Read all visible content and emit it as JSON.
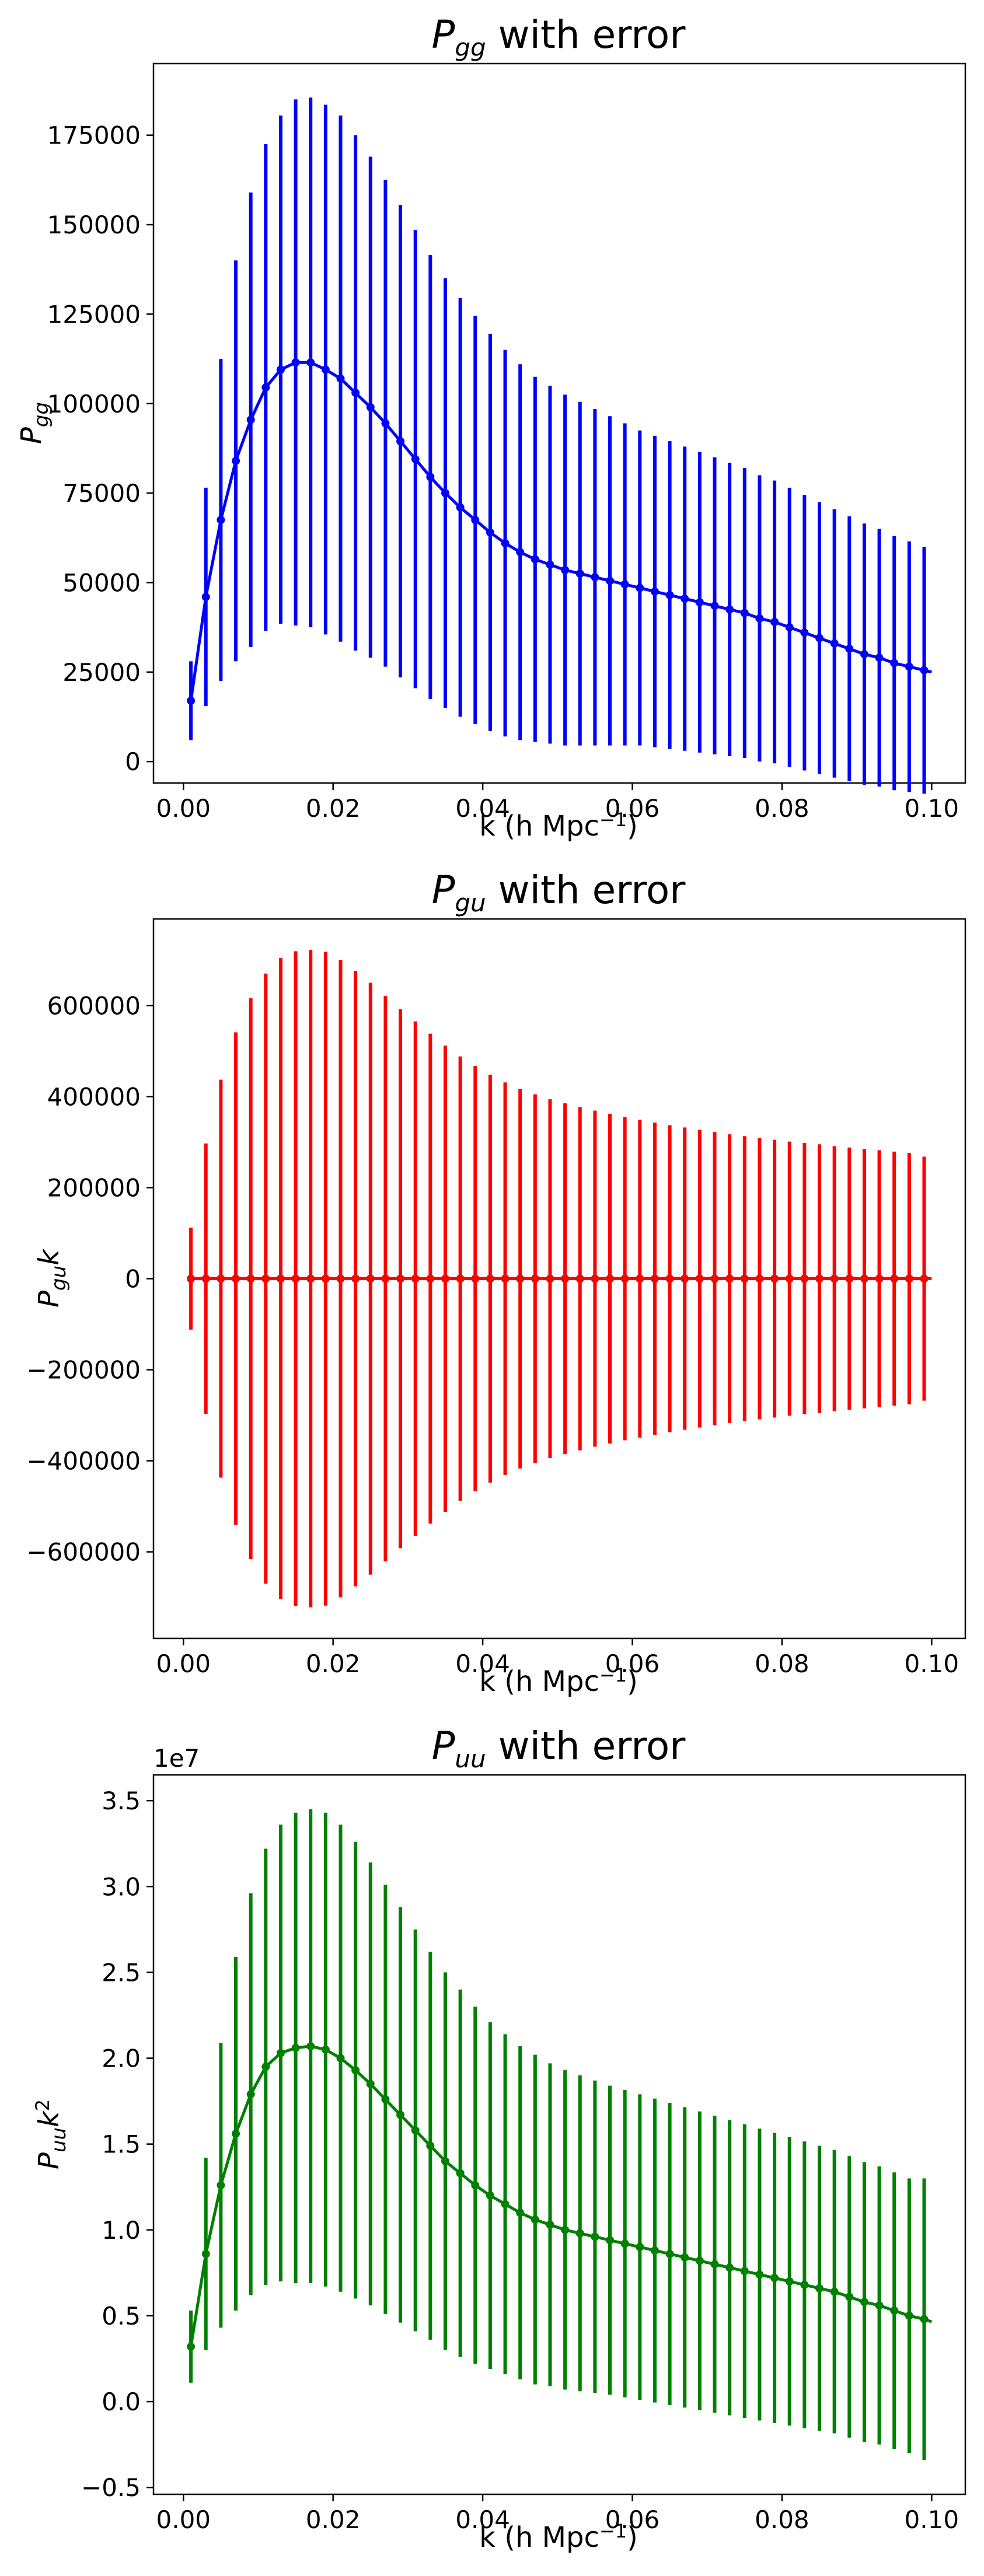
{
  "panels": [
    {
      "id": "pgg",
      "title_symbol": "P",
      "title_sub": "gg",
      "title_suffix": " with error",
      "ylabel_symbol": "P",
      "ylabel_sub": "gg",
      "ylabel_suffix": "",
      "ylabel_sup": "",
      "xlabel": "k (h Mpc",
      "xlabel_sup": "−1",
      "xlabel_end": ")",
      "offset_text": ""
    },
    {
      "id": "pgu",
      "title_symbol": "P",
      "title_sub": "gu",
      "title_suffix": " with error",
      "ylabel_symbol": "P",
      "ylabel_sub": "gu",
      "ylabel_suffix": "k",
      "ylabel_sup": "",
      "xlabel": "k (h Mpc",
      "xlabel_sup": "−1",
      "xlabel_end": ")",
      "offset_text": ""
    },
    {
      "id": "puu",
      "title_symbol": "P",
      "title_sub": "uu",
      "title_suffix": " with error",
      "ylabel_symbol": "P",
      "ylabel_sub": "uu",
      "ylabel_suffix": "k",
      "ylabel_sup": "2",
      "xlabel": "k (h Mpc",
      "xlabel_sup": "−1",
      "xlabel_end": ")",
      "offset_text": "1e7"
    }
  ],
  "chart_data": [
    {
      "type": "line",
      "name": "P_gg with error",
      "color": "#0000ff",
      "x_ticks": [
        0.0,
        0.02,
        0.04,
        0.06,
        0.08,
        0.1
      ],
      "x_tick_labels": [
        "0.00",
        "0.02",
        "0.04",
        "0.06",
        "0.08",
        "0.10"
      ],
      "xlim": [
        -0.004,
        0.1045
      ],
      "ylim": [
        -6000,
        195000
      ],
      "y_ticks": [
        0,
        25000,
        50000,
        75000,
        100000,
        125000,
        150000,
        175000
      ],
      "y_tick_labels": [
        "0",
        "25000",
        "50000",
        "75000",
        "100000",
        "125000",
        "150000",
        "175000"
      ],
      "x": [
        0.001,
        0.003,
        0.005,
        0.007,
        0.009,
        0.011,
        0.013,
        0.015,
        0.017,
        0.019,
        0.021,
        0.023,
        0.025,
        0.027,
        0.029,
        0.031,
        0.033,
        0.035,
        0.037,
        0.039,
        0.041,
        0.043,
        0.045,
        0.047,
        0.049,
        0.051,
        0.053,
        0.055,
        0.057,
        0.059,
        0.061,
        0.063,
        0.065,
        0.067,
        0.069,
        0.071,
        0.073,
        0.075,
        0.077,
        0.079,
        0.081,
        0.083,
        0.085,
        0.087,
        0.089,
        0.091,
        0.093,
        0.095,
        0.097,
        0.099
      ],
      "y": [
        17000,
        46000,
        67500,
        84000,
        95500,
        104500,
        109500,
        111500,
        111500,
        109500,
        107000,
        103000,
        99000,
        94500,
        89500,
        84500,
        79500,
        75000,
        71000,
        67500,
        64000,
        61000,
        58500,
        56500,
        55000,
        53500,
        52500,
        51500,
        50500,
        49500,
        48500,
        47500,
        46500,
        45500,
        44500,
        43500,
        42500,
        41500,
        40000,
        39000,
        37500,
        36000,
        34500,
        33000,
        31500,
        30000,
        29000,
        27500,
        26500,
        25500
      ],
      "yerr": [
        11000,
        30500,
        45000,
        56000,
        63500,
        68000,
        71000,
        73500,
        74000,
        74000,
        73500,
        72000,
        70000,
        68000,
        66000,
        64000,
        62000,
        60000,
        58500,
        57000,
        55500,
        54000,
        52500,
        51000,
        50000,
        49000,
        48000,
        47000,
        46000,
        45000,
        44000,
        43500,
        43000,
        42500,
        42000,
        41500,
        41000,
        40500,
        40000,
        39500,
        39000,
        38500,
        38000,
        37500,
        37000,
        36500,
        36000,
        35500,
        35000,
        34500
      ],
      "x_end": 0.1,
      "y_end": 25000
    },
    {
      "type": "line",
      "name": "P_gu with error",
      "color": "#ff0000",
      "x_ticks": [
        0.0,
        0.02,
        0.04,
        0.06,
        0.08,
        0.1
      ],
      "x_tick_labels": [
        "0.00",
        "0.02",
        "0.04",
        "0.06",
        "0.08",
        "0.10"
      ],
      "xlim": [
        -0.004,
        0.1045
      ],
      "ylim": [
        -790000,
        790000
      ],
      "y_ticks": [
        -600000,
        -400000,
        -200000,
        0,
        200000,
        400000,
        600000
      ],
      "y_tick_labels": [
        "−600000",
        "−400000",
        "−200000",
        "0",
        "200000",
        "400000",
        "600000"
      ],
      "x": [
        0.001,
        0.003,
        0.005,
        0.007,
        0.009,
        0.011,
        0.013,
        0.015,
        0.017,
        0.019,
        0.021,
        0.023,
        0.025,
        0.027,
        0.029,
        0.031,
        0.033,
        0.035,
        0.037,
        0.039,
        0.041,
        0.043,
        0.045,
        0.047,
        0.049,
        0.051,
        0.053,
        0.055,
        0.057,
        0.059,
        0.061,
        0.063,
        0.065,
        0.067,
        0.069,
        0.071,
        0.073,
        0.075,
        0.077,
        0.079,
        0.081,
        0.083,
        0.085,
        0.087,
        0.089,
        0.091,
        0.093,
        0.095,
        0.097,
        0.099
      ],
      "y": [
        0,
        0,
        0,
        0,
        0,
        0,
        0,
        0,
        0,
        0,
        0,
        0,
        0,
        0,
        0,
        0,
        0,
        0,
        0,
        0,
        0,
        0,
        0,
        0,
        0,
        0,
        0,
        0,
        0,
        0,
        0,
        0,
        0,
        0,
        0,
        0,
        0,
        0,
        0,
        0,
        0,
        0,
        0,
        0,
        0,
        0,
        0,
        0,
        0,
        0
      ],
      "yerr": [
        112000,
        297000,
        437000,
        541000,
        616000,
        670000,
        704000,
        719000,
        722000,
        718000,
        700000,
        676000,
        650000,
        621000,
        592000,
        565000,
        538000,
        512000,
        488000,
        467000,
        448000,
        431000,
        417000,
        405000,
        394000,
        385000,
        377000,
        369000,
        362000,
        355000,
        349000,
        343000,
        337000,
        332000,
        327000,
        322000,
        317000,
        313000,
        309000,
        305000,
        301000,
        298000,
        295000,
        291000,
        288000,
        285000,
        282000,
        279000,
        276000,
        268000
      ],
      "x_end": 0.1,
      "y_end": 0
    },
    {
      "type": "line",
      "name": "P_uu with error",
      "color": "#008000",
      "x_ticks": [
        0.0,
        0.02,
        0.04,
        0.06,
        0.08,
        0.1
      ],
      "x_tick_labels": [
        "0.00",
        "0.02",
        "0.04",
        "0.06",
        "0.08",
        "0.10"
      ],
      "xlim": [
        -0.004,
        0.1045
      ],
      "ylim": [
        -5400000,
        36500000
      ],
      "y_ticks": [
        -5000000,
        0,
        5000000,
        10000000,
        15000000,
        20000000,
        25000000,
        30000000,
        35000000
      ],
      "y_tick_labels": [
        "−0.5",
        "0.0",
        "0.5",
        "1.0",
        "1.5",
        "2.0",
        "2.5",
        "3.0",
        "3.5"
      ],
      "x": [
        0.001,
        0.003,
        0.005,
        0.007,
        0.009,
        0.011,
        0.013,
        0.015,
        0.017,
        0.019,
        0.021,
        0.023,
        0.025,
        0.027,
        0.029,
        0.031,
        0.033,
        0.035,
        0.037,
        0.039,
        0.041,
        0.043,
        0.045,
        0.047,
        0.049,
        0.051,
        0.053,
        0.055,
        0.057,
        0.059,
        0.061,
        0.063,
        0.065,
        0.067,
        0.069,
        0.071,
        0.073,
        0.075,
        0.077,
        0.079,
        0.081,
        0.083,
        0.085,
        0.087,
        0.089,
        0.091,
        0.093,
        0.095,
        0.097,
        0.099
      ],
      "y": [
        3200000,
        8600000,
        12600000,
        15600000,
        17900000,
        19500000,
        20300000,
        20600000,
        20700000,
        20500000,
        20000000,
        19300000,
        18500000,
        17600000,
        16700000,
        15800000,
        14900000,
        14000000,
        13300000,
        12600000,
        12000000,
        11500000,
        11000000,
        10600000,
        10300000,
        10000000,
        9800000,
        9600000,
        9400000,
        9200000,
        9000000,
        8800000,
        8600000,
        8400000,
        8200000,
        8000000,
        7800000,
        7600000,
        7400000,
        7200000,
        7000000,
        6800000,
        6600000,
        6400000,
        6100000,
        5800000,
        5600000,
        5300000,
        5000000,
        4800000
      ],
      "yerr": [
        2100000,
        5600000,
        8300000,
        10300000,
        11700000,
        12700000,
        13300000,
        13700000,
        13800000,
        13800000,
        13600000,
        13300000,
        12900000,
        12500000,
        12100000,
        11700000,
        11300000,
        11000000,
        10700000,
        10400000,
        10100000,
        9900000,
        9700000,
        9600000,
        9400000,
        9300000,
        9200000,
        9100000,
        9000000,
        8950000,
        8900000,
        8850000,
        8800000,
        8750000,
        8700000,
        8650000,
        8600000,
        8550000,
        8500000,
        8450000,
        8400000,
        8350000,
        8300000,
        8250000,
        8200000,
        8150000,
        8100000,
        8050000,
        8000000,
        8200000
      ],
      "x_end": 0.1,
      "y_end": 4650000
    }
  ]
}
